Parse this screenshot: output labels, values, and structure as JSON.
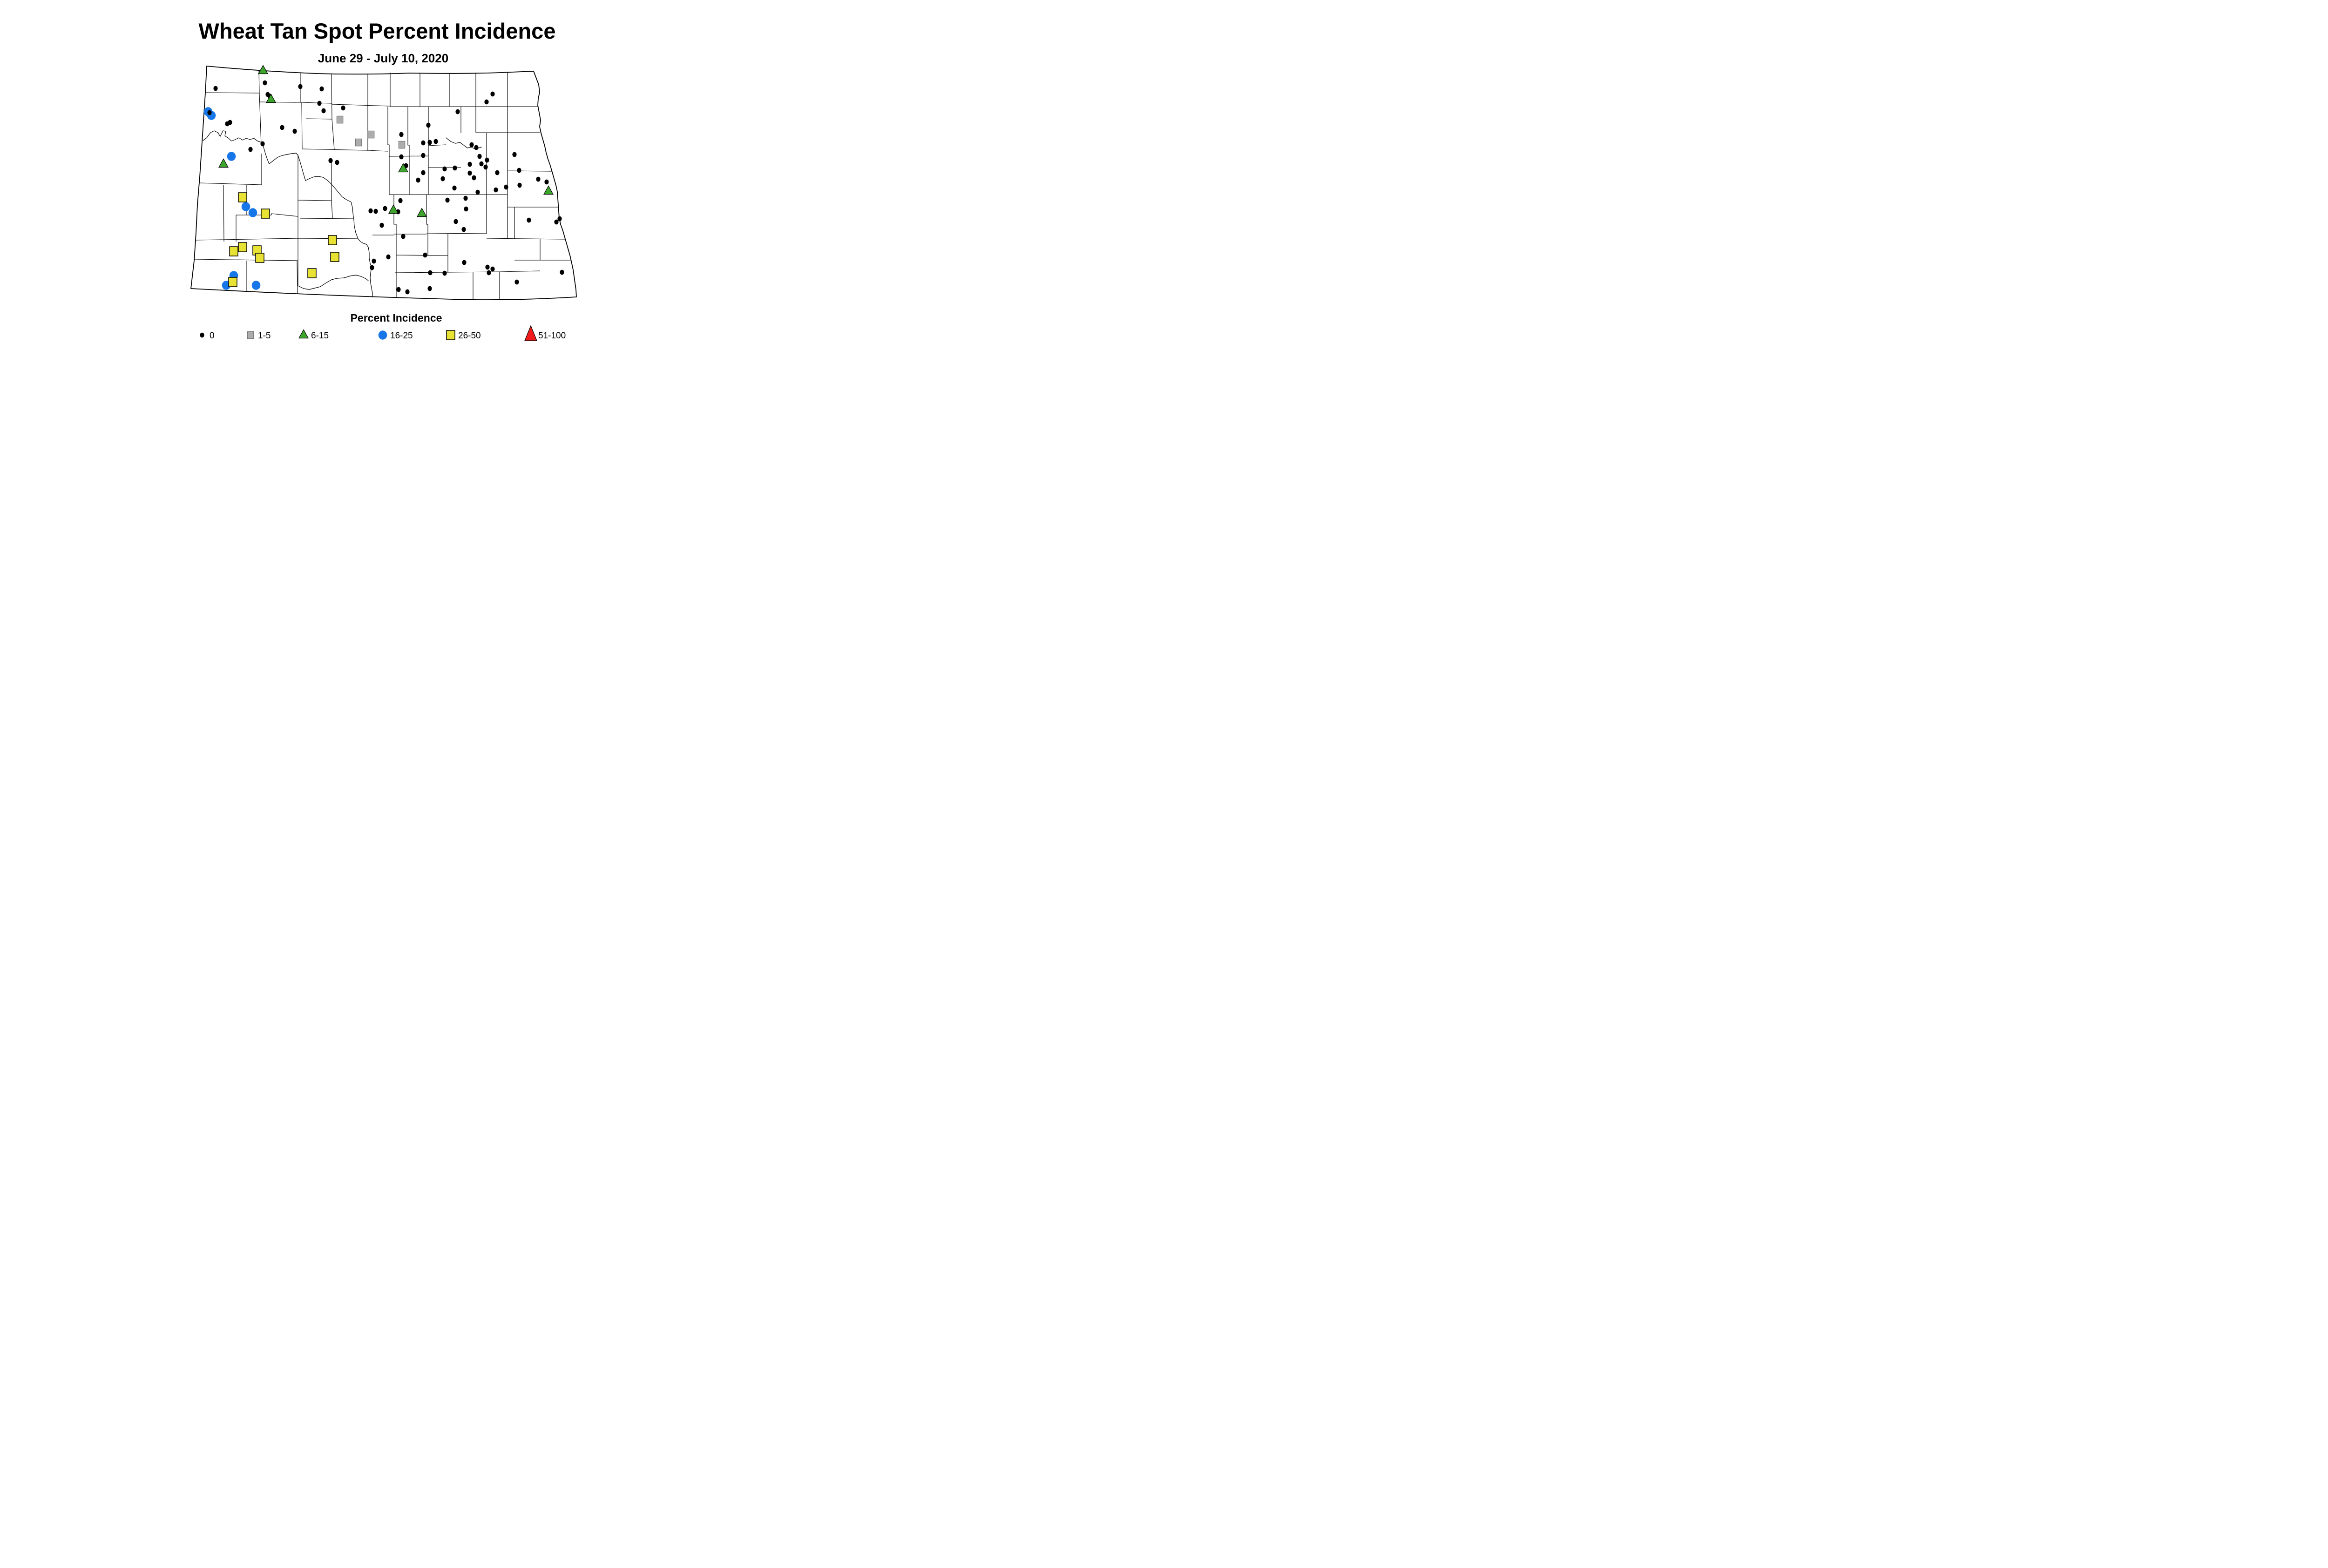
{
  "title": "Wheat Tan Spot Percent Incidence",
  "subtitle": "June 29 - July 10, 2020",
  "legend": {
    "title": "Percent Incidence",
    "items": [
      {
        "label": "0",
        "shape": "dot",
        "color": "#000000"
      },
      {
        "label": "1-5",
        "shape": "square",
        "color": "#ACACAC"
      },
      {
        "label": "6-15",
        "shape": "triangle",
        "color": "#3DA52C"
      },
      {
        "label": "16-25",
        "shape": "circle",
        "color": "#1777E8"
      },
      {
        "label": "26-50",
        "shape": "square-large",
        "color": "#E7E234"
      },
      {
        "label": "51-100",
        "shape": "triangle-large",
        "color": "#F11B1B"
      }
    ]
  },
  "map": {
    "points": {
      "0": [
        [
          463,
          190
        ],
        [
          569,
          178
        ],
        [
          575,
          203
        ],
        [
          580,
          207
        ],
        [
          645,
          186
        ],
        [
          691,
          191
        ],
        [
          686,
          222
        ],
        [
          737,
          232
        ],
        [
          695,
          238
        ],
        [
          450,
          242
        ],
        [
          488,
          266
        ],
        [
          494,
          263
        ],
        [
          606,
          274
        ],
        [
          633,
          282
        ],
        [
          564,
          309
        ],
        [
          538,
          321
        ],
        [
          710,
          345
        ],
        [
          724,
          349
        ],
        [
          1058,
          202
        ],
        [
          1045,
          219
        ],
        [
          983,
          240
        ],
        [
          920,
          269
        ],
        [
          862,
          289
        ],
        [
          909,
          307
        ],
        [
          923,
          306
        ],
        [
          936,
          304
        ],
        [
          1013,
          311
        ],
        [
          1023,
          317
        ],
        [
          909,
          334
        ],
        [
          862,
          337
        ],
        [
          1105,
          332
        ],
        [
          872,
          356
        ],
        [
          1030,
          336
        ],
        [
          1046,
          344
        ],
        [
          1034,
          352
        ],
        [
          1043,
          359
        ],
        [
          1115,
          366
        ],
        [
          1068,
          371
        ],
        [
          1156,
          385
        ],
        [
          1174,
          391
        ],
        [
          1087,
          402
        ],
        [
          1116,
          398
        ],
        [
          909,
          371
        ],
        [
          898,
          387
        ],
        [
          951,
          384
        ],
        [
          955,
          363
        ],
        [
          977,
          361
        ],
        [
          1009,
          353
        ],
        [
          1009,
          372
        ],
        [
          1018,
          382
        ],
        [
          976,
          404
        ],
        [
          1065,
          408
        ],
        [
          1026,
          413
        ],
        [
          1000,
          426
        ],
        [
          961,
          430
        ],
        [
          860,
          431
        ],
        [
          796,
          453
        ],
        [
          807,
          454
        ],
        [
          827,
          448
        ],
        [
          855,
          455
        ],
        [
          820,
          484
        ],
        [
          1001,
          449
        ],
        [
          979,
          476
        ],
        [
          996,
          493
        ],
        [
          866,
          508
        ],
        [
          1136,
          473
        ],
        [
          1202,
          470
        ],
        [
          1195,
          477
        ],
        [
          913,
          548
        ],
        [
          834,
          552
        ],
        [
          803,
          561
        ],
        [
          799,
          575
        ],
        [
          997,
          564
        ],
        [
          1047,
          574
        ],
        [
          1058,
          578
        ],
        [
          1050,
          586
        ],
        [
          924,
          586
        ],
        [
          955,
          587
        ],
        [
          1110,
          606
        ],
        [
          1207,
          585
        ],
        [
          856,
          622
        ],
        [
          875,
          627
        ],
        [
          923,
          620
        ]
      ],
      "1-5": [
        [
          730,
          257
        ],
        [
          797,
          289
        ],
        [
          770,
          306
        ],
        [
          863,
          311
        ]
      ],
      "6-15": [
        [
          565,
          152
        ],
        [
          582,
          214
        ],
        [
          480,
          353
        ],
        [
          866,
          363
        ],
        [
          845,
          452
        ],
        [
          906,
          459
        ],
        [
          1178,
          411
        ]
      ],
      "16-25": [
        [
          447,
          240
        ],
        [
          454,
          248
        ],
        [
          497,
          336
        ],
        [
          528,
          444
        ],
        [
          543,
          457
        ],
        [
          502,
          592
        ],
        [
          486,
          613
        ],
        [
          550,
          613
        ]
      ],
      "26-50": [
        [
          521,
          424
        ],
        [
          570,
          459
        ],
        [
          521,
          531
        ],
        [
          502,
          540
        ],
        [
          552,
          538
        ],
        [
          558,
          554
        ],
        [
          714,
          516
        ],
        [
          719,
          552
        ],
        [
          670,
          587
        ],
        [
          500,
          606
        ]
      ],
      "51-100": []
    }
  }
}
